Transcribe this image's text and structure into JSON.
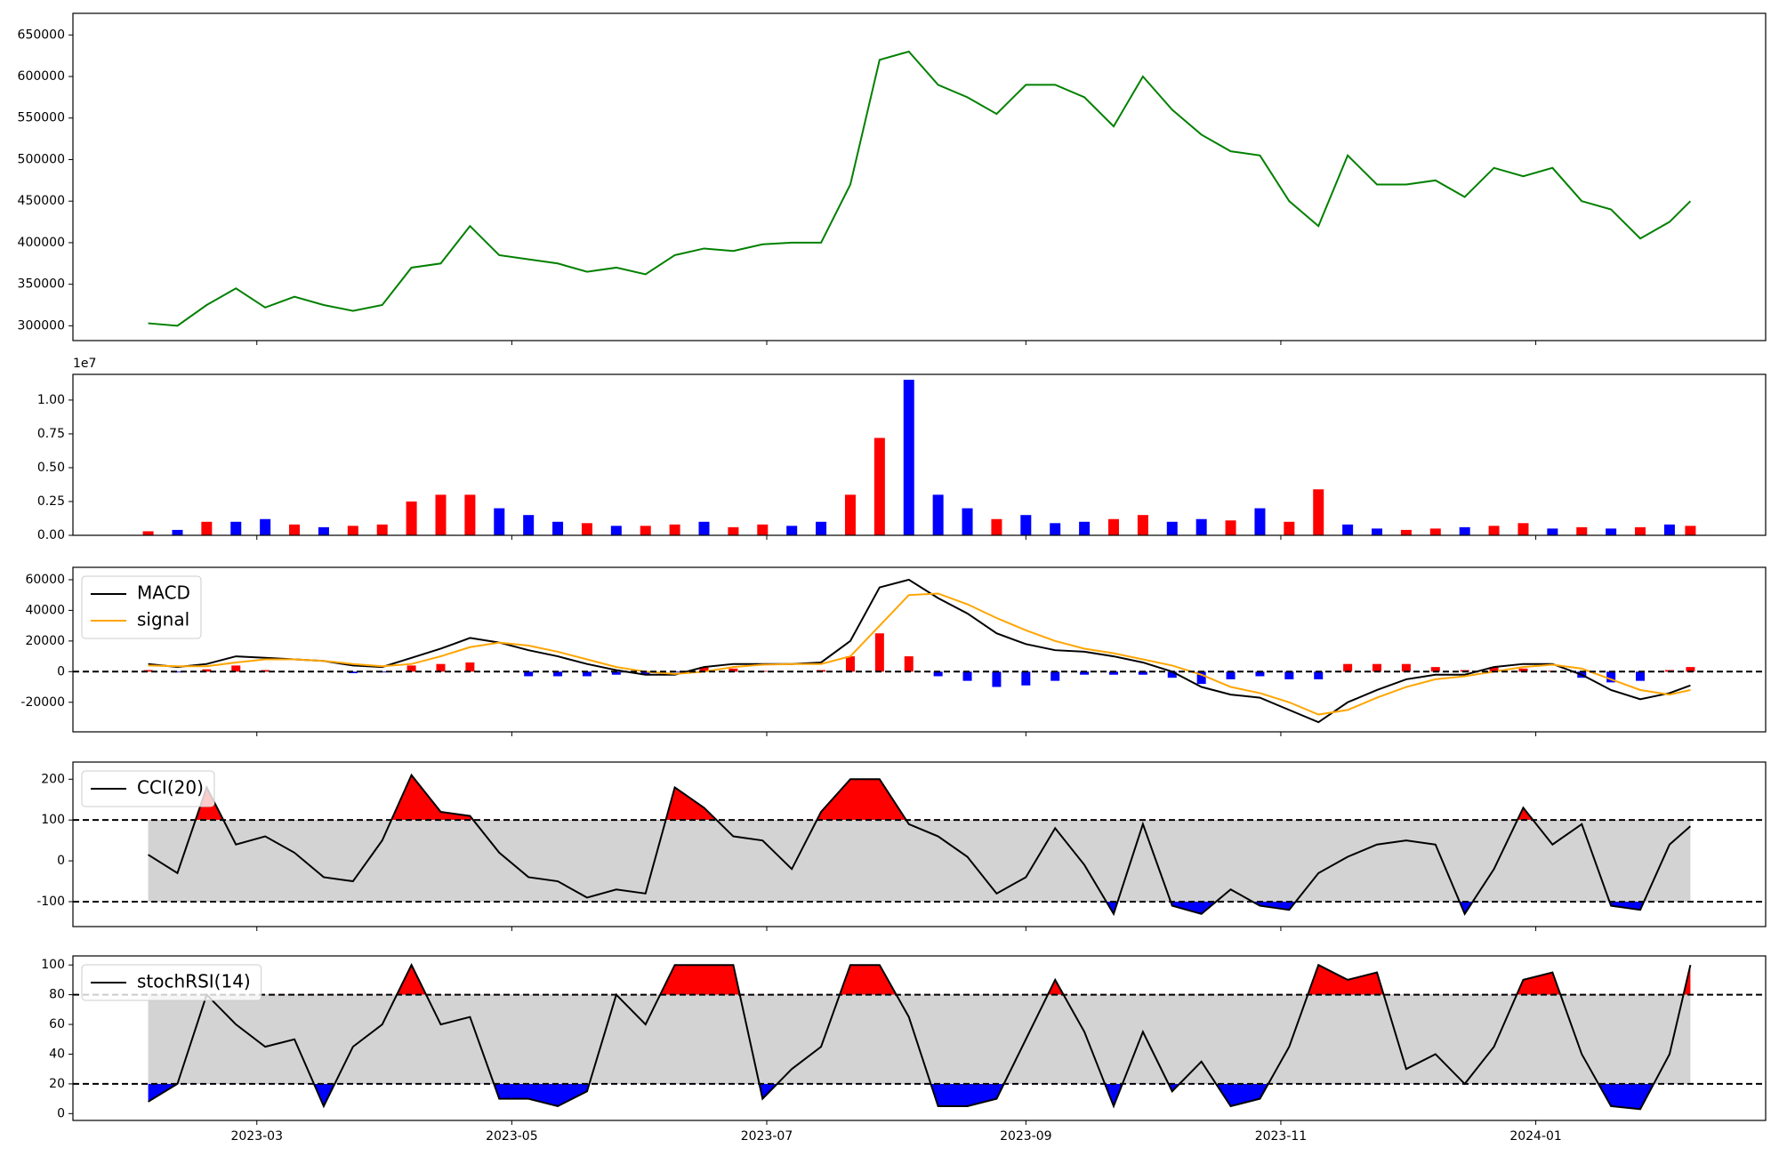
{
  "chart_data": [
    {
      "type": "line",
      "series": [
        {
          "color": "green",
          "values": [
            303000,
            300000,
            325000,
            345000,
            322000,
            335000,
            325000,
            318000,
            325000,
            370000,
            375000,
            420000,
            385000,
            380000,
            375000,
            365000,
            370000,
            362000,
            385000,
            393000,
            390000,
            398000,
            400000,
            400000,
            470000,
            620000,
            630000,
            590000,
            575000,
            555000,
            590000,
            590000,
            575000,
            540000,
            600000,
            560000,
            530000,
            510000,
            505000,
            450000,
            420000,
            505000,
            470000,
            470000,
            475000,
            455000,
            490000,
            480000,
            490000,
            450000,
            440000,
            405000,
            425000,
            450000
          ]
        }
      ],
      "ylim": [
        282200,
        676000
      ],
      "yticks": [
        300000,
        350000,
        400000,
        450000,
        500000,
        550000,
        600000,
        650000
      ]
    },
    {
      "type": "bar",
      "offset_label": "1e7",
      "values": [
        0.03,
        0.04,
        0.1,
        0.1,
        0.12,
        0.08,
        0.06,
        0.07,
        0.08,
        0.25,
        0.3,
        0.3,
        0.2,
        0.15,
        0.1,
        0.09,
        0.07,
        0.07,
        0.08,
        0.1,
        0.06,
        0.08,
        0.07,
        0.1,
        0.3,
        0.72,
        1.15,
        0.3,
        0.2,
        0.12,
        0.15,
        0.09,
        0.1,
        0.12,
        0.15,
        0.1,
        0.12,
        0.11,
        0.2,
        0.1,
        0.34,
        0.08,
        0.05,
        0.04,
        0.05,
        0.06,
        0.07,
        0.09,
        0.05,
        0.06,
        0.05,
        0.06,
        0.08,
        0.07
      ],
      "bar_colors": [
        "red",
        "blue",
        "red",
        "blue",
        "blue",
        "red",
        "blue",
        "red",
        "red",
        "red",
        "red",
        "red",
        "blue",
        "blue",
        "blue",
        "red",
        "blue",
        "red",
        "red",
        "blue",
        "red",
        "red",
        "blue",
        "blue",
        "red",
        "red",
        "blue",
        "blue",
        "blue",
        "red",
        "blue",
        "blue",
        "blue",
        "red",
        "red",
        "blue",
        "blue",
        "red",
        "blue",
        "red",
        "red",
        "blue",
        "blue",
        "red",
        "red",
        "blue",
        "red",
        "red",
        "blue",
        "red",
        "blue",
        "red",
        "blue",
        "red"
      ],
      "ylim": [
        0,
        1.19
      ],
      "yticks": [
        {
          "value": 0,
          "label": "0.00"
        },
        {
          "value": 0.25,
          "label": "0.25"
        },
        {
          "value": 0.5,
          "label": "0.50"
        },
        {
          "value": 0.75,
          "label": "0.75"
        },
        {
          "value": 1,
          "label": "1.00"
        }
      ]
    },
    {
      "type": "line",
      "series": [
        {
          "name": "MACD",
          "color": "black",
          "values": [
            5000,
            3000,
            5000,
            10000,
            9000,
            8000,
            7000,
            4000,
            3000,
            9000,
            15000,
            22000,
            19000,
            14000,
            10000,
            5000,
            1000,
            -2000,
            -2000,
            3000,
            5000,
            5000,
            5000,
            6000,
            20000,
            55000,
            60000,
            48000,
            38000,
            25000,
            18000,
            14000,
            13000,
            10000,
            6000,
            0,
            -10000,
            -15000,
            -17000,
            -25000,
            -33000,
            -20000,
            -12000,
            -5000,
            -2000,
            -2000,
            3000,
            5000,
            5000,
            -2000,
            -12000,
            -18000,
            -14000,
            -9000
          ]
        },
        {
          "name": "signal",
          "color": "orange",
          "values": [
            4000,
            3500,
            3500,
            6000,
            8000,
            8000,
            7000,
            5000,
            3500,
            5000,
            10000,
            16000,
            19000,
            17000,
            13000,
            8000,
            3000,
            0,
            -1500,
            0,
            3000,
            4500,
            5000,
            5000,
            10000,
            30000,
            50000,
            51000,
            44000,
            35000,
            27000,
            20000,
            15000,
            12000,
            8000,
            4000,
            -2000,
            -10000,
            -14000,
            -20000,
            -28000,
            -25000,
            -17000,
            -10000,
            -5000,
            -3000,
            0,
            3000,
            4500,
            2000,
            -5000,
            -12000,
            -15000,
            -12000
          ]
        }
      ],
      "histogram": [
        1000,
        -500,
        1500,
        4000,
        1000,
        0,
        0,
        -1000,
        -500,
        4000,
        5000,
        6000,
        0,
        -3000,
        -3000,
        -3000,
        -2000,
        -2000,
        -500,
        3000,
        2000,
        500,
        0,
        1000,
        10000,
        25000,
        10000,
        -3000,
        -6000,
        -10000,
        -9000,
        -6000,
        -2000,
        -2000,
        -2000,
        -4000,
        -8000,
        -5000,
        -3000,
        -5000,
        -5000,
        5000,
        5000,
        5000,
        3000,
        1000,
        3000,
        2000,
        500,
        -4000,
        -7000,
        -6000,
        1000,
        3000
      ],
      "positive_color": "red",
      "negative_color": "blue",
      "hlines": [
        0
      ],
      "ylim": [
        -39300,
        68100
      ],
      "yticks": [
        -20000,
        0,
        20000,
        40000,
        60000
      ],
      "legend": "upper left"
    },
    {
      "type": "line",
      "series": [
        {
          "name": "CCI(20)",
          "color": "black",
          "values": [
            15,
            -30,
            180,
            40,
            60,
            20,
            -40,
            -50,
            50,
            210,
            120,
            110,
            20,
            -40,
            -50,
            -90,
            -70,
            -80,
            180,
            130,
            60,
            50,
            -20,
            120,
            200,
            200,
            90,
            60,
            10,
            -80,
            -40,
            80,
            -10,
            -130,
            90,
            -110,
            -130,
            -70,
            -110,
            -120,
            -30,
            10,
            40,
            50,
            40,
            -130,
            -20,
            130,
            40,
            90,
            -110,
            -120,
            40,
            85
          ]
        }
      ],
      "thresholds": [
        -100,
        100
      ],
      "band_color": "#d3d3d3",
      "above_color": "red",
      "below_color": "blue",
      "ylim": [
        -161,
        242
      ],
      "yticks": [
        -100,
        0,
        100,
        200
      ],
      "legend": "upper left"
    },
    {
      "type": "line",
      "series": [
        {
          "name": "stochRSI(14)",
          "color": "black",
          "values": [
            8,
            20,
            80,
            60,
            45,
            50,
            5,
            45,
            60,
            100,
            60,
            65,
            10,
            10,
            5,
            15,
            80,
            60,
            100,
            100,
            100,
            10,
            30,
            45,
            100,
            100,
            65,
            5,
            5,
            10,
            50,
            90,
            55,
            5,
            55,
            15,
            35,
            5,
            10,
            45,
            100,
            90,
            95,
            30,
            40,
            20,
            45,
            90,
            95,
            40,
            5,
            3,
            40,
            100
          ]
        }
      ],
      "thresholds": [
        20,
        80
      ],
      "band_color": "#d3d3d3",
      "above_color": "red",
      "below_color": "blue",
      "ylim": [
        -4.6,
        106.1
      ],
      "yticks": [
        0,
        20,
        40,
        60,
        80,
        100
      ],
      "legend": "upper left",
      "x": [
        "2023-02-03",
        "2023-02-10",
        "2023-02-17",
        "2023-02-24",
        "2023-03-03",
        "2023-03-10",
        "2023-03-17",
        "2023-03-24",
        "2023-03-31",
        "2023-04-07",
        "2023-04-14",
        "2023-04-21",
        "2023-04-28",
        "2023-05-05",
        "2023-05-12",
        "2023-05-19",
        "2023-05-26",
        "2023-06-02",
        "2023-06-09",
        "2023-06-16",
        "2023-06-23",
        "2023-06-30",
        "2023-07-07",
        "2023-07-14",
        "2023-07-21",
        "2023-07-28",
        "2023-08-04",
        "2023-08-11",
        "2023-08-18",
        "2023-08-25",
        "2023-09-01",
        "2023-09-08",
        "2023-09-15",
        "2023-09-22",
        "2023-09-29",
        "2023-10-06",
        "2023-10-13",
        "2023-10-20",
        "2023-10-27",
        "2023-11-03",
        "2023-11-10",
        "2023-11-17",
        "2023-11-24",
        "2023-12-01",
        "2023-12-08",
        "2023-12-15",
        "2023-12-22",
        "2023-12-29",
        "2024-01-05",
        "2024-01-12",
        "2024-01-19",
        "2024-01-26",
        "2024-02-02",
        "2024-02-07"
      ],
      "xlim": [
        "2023-01-16",
        "2024-02-25"
      ],
      "xticks": [
        {
          "value": "2023-03-01",
          "label": "2023-03"
        },
        {
          "value": "2023-05-01",
          "label": "2023-05"
        },
        {
          "value": "2023-07-01",
          "label": "2023-07"
        },
        {
          "value": "2023-09-01",
          "label": "2023-09"
        },
        {
          "value": "2023-11-01",
          "label": "2023-11"
        },
        {
          "value": "2024-01-01",
          "label": "2024-01"
        }
      ]
    }
  ]
}
